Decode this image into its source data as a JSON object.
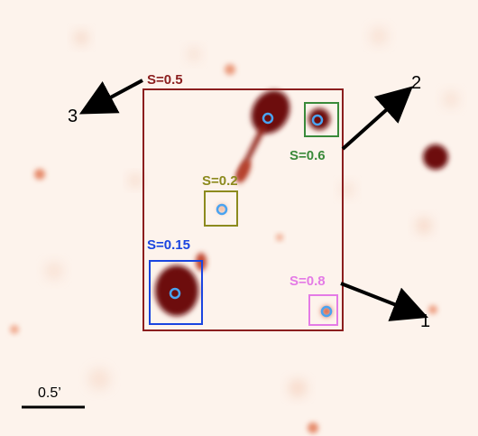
{
  "colors": {
    "background": "#fdf3ec",
    "blob": "#6d0c0c",
    "main_box": "#8b1e1e",
    "blue": "#1a45e0",
    "green": "#3a8a3a",
    "olive": "#8c8a1e",
    "pink": "#e47be6",
    "marker": "#4aa3f0",
    "arrow": "#000000"
  },
  "regions": {
    "main": {
      "label": "S=0.5"
    },
    "green": {
      "label": "S=0.6"
    },
    "olive": {
      "label": "S=0.2"
    },
    "blue": {
      "label": "S=0.15"
    },
    "pink": {
      "label": "S=0.8"
    }
  },
  "arrows": [
    {
      "label": "1"
    },
    {
      "label": "2"
    },
    {
      "label": "3"
    }
  ],
  "scale_bar": {
    "label": "0.5’"
  }
}
